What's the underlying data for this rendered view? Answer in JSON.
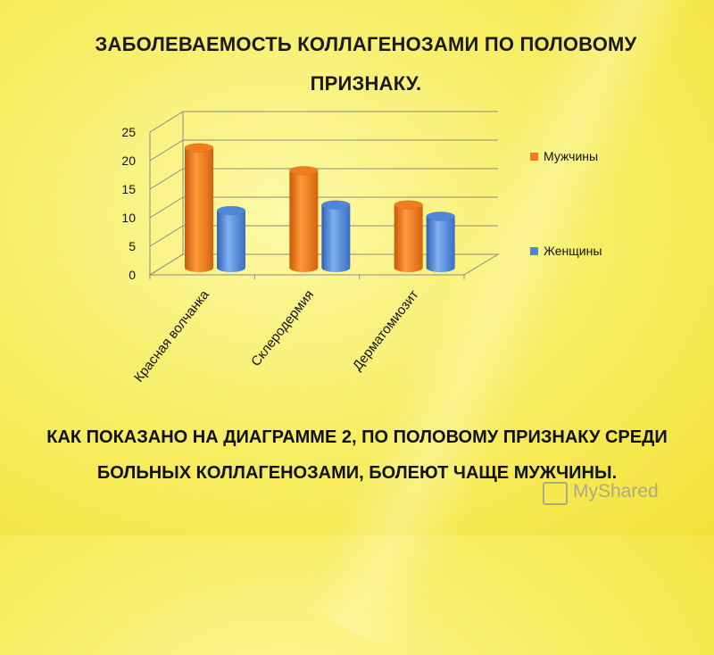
{
  "title": "ЗАБОЛЕВАЕМОСТЬ КОЛЛАГЕНОЗАМИ ПО ПОЛОВОМУ ПРИЗНАКУ.",
  "conclusion": "КАК ПОКАЗАНО НА ДИАГРАММЕ 2, ПО ПОЛОВОМУ ПРИЗНАКУ СРЕДИ БОЛЬНЫХ КОЛЛАГЕНОЗАМИ, БОЛЕЮТ ЧАЩЕ МУЖЧИНЫ.",
  "watermark": "MyShared",
  "chart_data": {
    "type": "bar",
    "categories": [
      "Красная волчанка",
      "Склеродермия",
      "Дерматомиозит"
    ],
    "series": [
      {
        "name": "Мужчины",
        "values": [
          21,
          17,
          11
        ],
        "color": "#f07c1e"
      },
      {
        "name": "Женщины",
        "values": [
          10,
          11,
          9
        ],
        "color": "#4f86d8"
      }
    ],
    "yticks": [
      0,
      5,
      10,
      15,
      20,
      25
    ],
    "ylim": [
      0,
      25
    ],
    "grid": true,
    "legend": "right"
  }
}
